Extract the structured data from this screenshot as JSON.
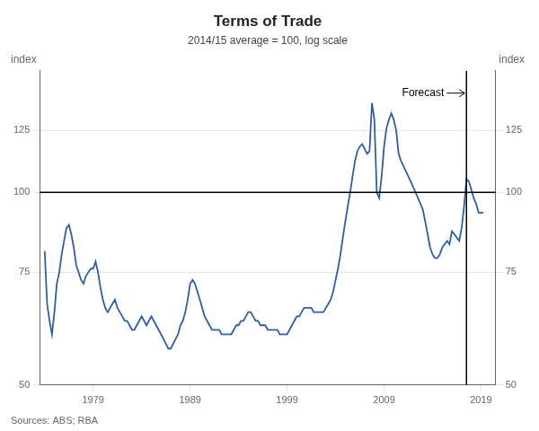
{
  "chart_data": {
    "type": "line",
    "title": "Terms of Trade",
    "subtitle": "2014/15 average = 100, log scale",
    "source": "Sources: ABS; RBA",
    "ylabel": "index",
    "y2label": "index",
    "log": "y",
    "grid": "y",
    "color": "#2c5fa8",
    "xlim": [
      1973.5,
      2020.5
    ],
    "xticks": [
      1979,
      1989,
      1999,
      2009,
      2019
    ],
    "ylim": [
      50,
      155
    ],
    "yticks": [
      50,
      75,
      100,
      125
    ],
    "y2lim": [
      50,
      155
    ],
    "y2ticks": [
      50,
      75,
      100,
      125
    ],
    "reference_lines": {
      "y": [
        100
      ],
      "x": [
        2017.5
      ]
    },
    "annotations": [
      {
        "text": "Forecast",
        "x": 2017.5,
        "y": 143
      }
    ],
    "x": [
      1974,
      1974.25,
      1974.5,
      1974.75,
      1975,
      1975.25,
      1975.5,
      1975.75,
      1976,
      1976.25,
      1976.5,
      1976.75,
      1977,
      1977.25,
      1977.5,
      1977.75,
      1978,
      1978.25,
      1978.5,
      1978.75,
      1979,
      1979.25,
      1979.5,
      1979.75,
      1980,
      1980.25,
      1980.5,
      1980.75,
      1981,
      1981.25,
      1981.5,
      1981.75,
      1982,
      1982.25,
      1982.5,
      1982.75,
      1983,
      1983.25,
      1983.5,
      1983.75,
      1984,
      1984.25,
      1984.5,
      1984.75,
      1985,
      1985.25,
      1985.5,
      1985.75,
      1986,
      1986.25,
      1986.5,
      1986.75,
      1987,
      1987.25,
      1987.5,
      1987.75,
      1988,
      1988.25,
      1988.5,
      1988.75,
      1989,
      1989.25,
      1989.5,
      1989.75,
      1990,
      1990.25,
      1990.5,
      1990.75,
      1991,
      1991.25,
      1991.5,
      1991.75,
      1992,
      1992.25,
      1992.5,
      1992.75,
      1993,
      1993.25,
      1993.5,
      1993.75,
      1994,
      1994.25,
      1994.5,
      1994.75,
      1995,
      1995.25,
      1995.5,
      1995.75,
      1996,
      1996.25,
      1996.5,
      1996.75,
      1997,
      1997.25,
      1997.5,
      1997.75,
      1998,
      1998.25,
      1998.5,
      1998.75,
      1999,
      1999.25,
      1999.5,
      1999.75,
      2000,
      2000.25,
      2000.5,
      2000.75,
      2001,
      2001.25,
      2001.5,
      2001.75,
      2002,
      2002.25,
      2002.5,
      2002.75,
      2003,
      2003.25,
      2003.5,
      2003.75,
      2004,
      2004.25,
      2004.5,
      2004.75,
      2005,
      2005.25,
      2005.5,
      2005.75,
      2006,
      2006.25,
      2006.5,
      2006.75,
      2007,
      2007.25,
      2007.5,
      2007.75,
      2008,
      2008.25,
      2008.5,
      2008.75,
      2009,
      2009.25,
      2009.5,
      2009.75,
      2010,
      2010.25,
      2010.5,
      2010.75,
      2011,
      2011.25,
      2011.5,
      2011.75,
      2012,
      2012.25,
      2012.5,
      2012.75,
      2013,
      2013.25,
      2013.5,
      2013.75,
      2014,
      2014.25,
      2014.5,
      2014.75,
      2015,
      2015.25,
      2015.5,
      2015.75,
      2016,
      2016.25,
      2016.5,
      2016.75,
      2017,
      2017.25,
      2017.5,
      2017.75,
      2018,
      2018.25,
      2018.5,
      2018.75,
      2019,
      2019.25
    ],
    "values": [
      81,
      67,
      63,
      60,
      65,
      72,
      75,
      80,
      84,
      88,
      89,
      86,
      82,
      77,
      75,
      73,
      72,
      74,
      75,
      76,
      76,
      78,
      75,
      71,
      68,
      66,
      65,
      66,
      67,
      68,
      66,
      65,
      64,
      63,
      63,
      62,
      61,
      61,
      62,
      63,
      64,
      63,
      62,
      63,
      64,
      63,
      62,
      61,
      60,
      59,
      58,
      57,
      57,
      58,
      59,
      60,
      62,
      63,
      65,
      68,
      72,
      73,
      72,
      70,
      68,
      66,
      64,
      63,
      62,
      61,
      61,
      61,
      61,
      60,
      60,
      60,
      60,
      60,
      61,
      62,
      62,
      63,
      63,
      64,
      65,
      65,
      64,
      63,
      63,
      62,
      62,
      62,
      61,
      61,
      61,
      61,
      61,
      60,
      60,
      60,
      60,
      61,
      62,
      63,
      64,
      64,
      65,
      66,
      66,
      66,
      66,
      65,
      65,
      65,
      65,
      65,
      66,
      67,
      68,
      70,
      73,
      76,
      80,
      85,
      90,
      95,
      100,
      106,
      112,
      116,
      118,
      119,
      117,
      115,
      116,
      138,
      130,
      100,
      98,
      106,
      118,
      126,
      130,
      133,
      130,
      125,
      115,
      112,
      110,
      108,
      106,
      104,
      102,
      100,
      98,
      96,
      94,
      90,
      86,
      82,
      80,
      79,
      79,
      80,
      82,
      83,
      84,
      83,
      87,
      86,
      85,
      84,
      88,
      95,
      105,
      104,
      101,
      98,
      96,
      93,
      93,
      93
    ]
  }
}
